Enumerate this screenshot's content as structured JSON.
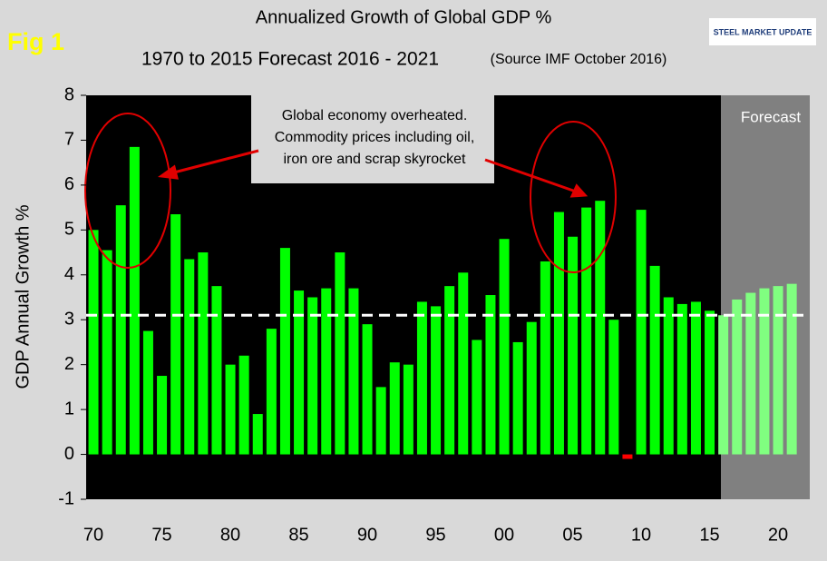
{
  "chart_data": {
    "type": "bar",
    "title": "Annualized Growth of Global GDP %",
    "subtitle": "1970 to 2015 Forecast 2016 - 2021",
    "source": "(Source IMF October 2016)",
    "figure_label": "Fig 1",
    "logo": "STEEL MARKET UPDATE",
    "y_label": "GDP Annual Growth %",
    "annotation": [
      "Global economy overheated.",
      "Commodity prices including oil,",
      "iron ore and scrap skyrocket"
    ],
    "forecast_label": "Forecast",
    "categories": [
      "70",
      null,
      null,
      null,
      null,
      "75",
      null,
      null,
      null,
      null,
      "80",
      null,
      null,
      null,
      null,
      "85",
      null,
      null,
      null,
      null,
      "90",
      null,
      null,
      null,
      null,
      "95",
      null,
      null,
      null,
      null,
      "00",
      null,
      null,
      null,
      null,
      "05",
      null,
      null,
      null,
      null,
      "10",
      null,
      null,
      null,
      null,
      "15",
      null,
      null,
      null,
      null,
      "20",
      null
    ],
    "values": [
      5.0,
      4.55,
      5.55,
      6.85,
      2.75,
      1.75,
      5.35,
      4.35,
      4.5,
      3.75,
      2.0,
      2.2,
      0.9,
      2.8,
      4.6,
      3.65,
      3.5,
      3.7,
      4.5,
      3.7,
      2.9,
      1.5,
      2.05,
      2.0,
      3.4,
      3.3,
      3.75,
      4.05,
      2.55,
      3.55,
      4.8,
      2.5,
      2.95,
      4.3,
      5.4,
      4.85,
      5.5,
      5.65,
      3.0,
      -0.1,
      5.45,
      4.2,
      3.5,
      3.35,
      3.4,
      3.2,
      3.1,
      3.45,
      3.6,
      3.7,
      3.75,
      3.8
    ],
    "colors": [
      "#00ff00",
      "#00ff00",
      "#00ff00",
      "#00ff00",
      "#00ff00",
      "#00ff00",
      "#00ff00",
      "#00ff00",
      "#00ff00",
      "#00ff00",
      "#00ff00",
      "#00ff00",
      "#00ff00",
      "#00ff00",
      "#00ff00",
      "#00ff00",
      "#00ff00",
      "#00ff00",
      "#00ff00",
      "#00ff00",
      "#00ff00",
      "#00ff00",
      "#00ff00",
      "#00ff00",
      "#00ff00",
      "#00ff00",
      "#00ff00",
      "#00ff00",
      "#00ff00",
      "#00ff00",
      "#00ff00",
      "#00ff00",
      "#00ff00",
      "#00ff00",
      "#00ff00",
      "#00ff00",
      "#00ff00",
      "#00ff00",
      "#00ff00",
      "#ff0000",
      "#00ff00",
      "#00ff00",
      "#00ff00",
      "#00ff00",
      "#00ff00",
      "#00ff00",
      "#80ff80",
      "#80ff80",
      "#80ff80",
      "#80ff80",
      "#80ff80",
      "#80ff80"
    ],
    "reference_line": 3.1,
    "ylim": [
      -1,
      8
    ],
    "yticks": [
      -1,
      0,
      1,
      2,
      3,
      4,
      5,
      6,
      7,
      8
    ]
  }
}
